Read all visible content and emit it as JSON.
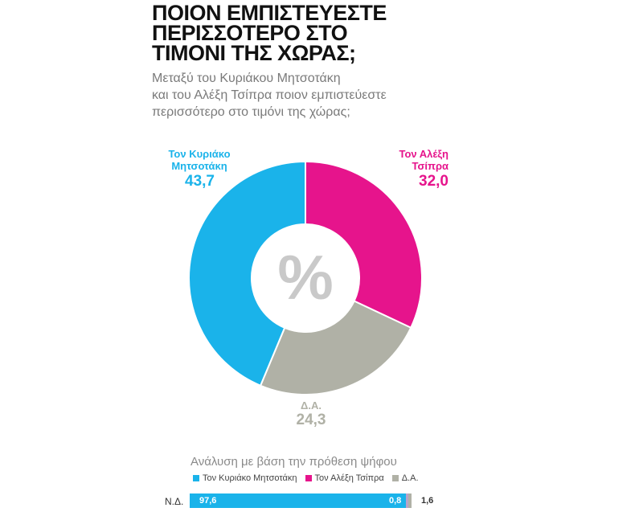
{
  "title_lines": [
    "ΠΟΙΟΝ ΕΜΠΙΣΤΕΥΕΣΤΕ",
    "ΠΕΡΙΣΣΟΤΕΡΟ ΣΤΟ",
    "ΤΙΜΟΝΙ ΤΗΣ ΧΩΡΑΣ;"
  ],
  "subtitle_lines": [
    "Μεταξύ του Κυριάκου Μητσοτάκη",
    "και του Αλέξη Τσίπρα ποιον εμπιστεύεστε",
    "περισσότερο στο τιμόνι της χώρας;"
  ],
  "center_symbol": "%",
  "colors": {
    "mitsotakis": "#1ab3ea",
    "tsipras": "#e6148c",
    "da": "#b0b1a6",
    "extra": "#b9a3c9"
  },
  "chart_data": [
    {
      "type": "pie",
      "donut": true,
      "slices": [
        {
          "key": "tsipras",
          "label_lines": [
            "Τον Αλέξη",
            "Τσίπρα"
          ],
          "value": 32.0,
          "value_text": "32,0"
        },
        {
          "key": "da",
          "label_lines": [
            "Δ.Α."
          ],
          "value": 24.3,
          "value_text": "24,3"
        },
        {
          "key": "mitsotakis",
          "label_lines": [
            "Τον Κυριάκο",
            "Μητσοτάκη"
          ],
          "value": 43.7,
          "value_text": "43,7"
        }
      ]
    },
    {
      "type": "bar",
      "stacked": true,
      "orientation": "horizontal",
      "title": "Ανάλυση με βάση την πρόθεση ψήφου",
      "legend": [
        "Τον Κυριάκο Μητσοτάκη",
        "Τον Αλέξη Τσίπρα",
        "Δ.Α."
      ],
      "categories": [
        "Ν.Δ."
      ],
      "segments": [
        {
          "key": "mitsotakis",
          "value": 97.6,
          "value_text": "97,6"
        },
        {
          "key": "tsipras",
          "value": 0.8,
          "value_text": "0,8"
        },
        {
          "key": "da",
          "value": 1.6,
          "value_text": "1,6"
        }
      ]
    }
  ]
}
